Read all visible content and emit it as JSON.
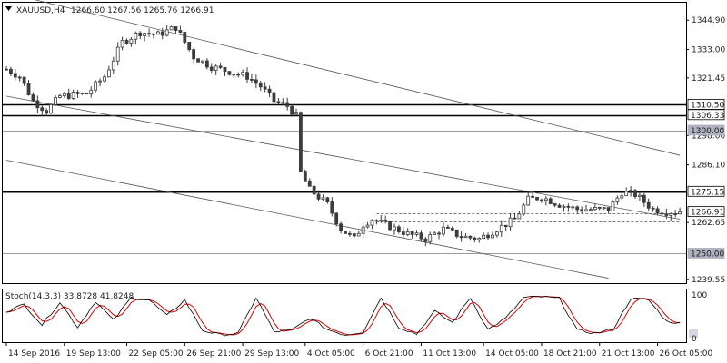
{
  "header": {
    "symbol": "XAUUSD,H4",
    "ohlc": "1266.60 1267.56 1265.76 1266.91"
  },
  "stoch_header": "Stoch(14,3,3) 33.8728 41.8248",
  "colors": {
    "candle": "#3c3c3c",
    "grid_line": "#000000",
    "trend_line": "#555555",
    "faded_line": "#9a9aa8",
    "dashed_line": "#555555",
    "stoch_main": "#000000",
    "stoch_signal": "#e00000",
    "axis_text": "#222222",
    "tag_dark_bg": "#ffffff",
    "tag_gray_bg": "#b0b0c0"
  },
  "chart_data": {
    "type": "candlestick",
    "symbol": "XAUUSD",
    "timeframe": "H4",
    "ylim": [
      1238.0,
      1352.0
    ],
    "y_ticks": [
      "1344.90",
      "1333.00",
      "1321.45",
      "1298.00",
      "1286.10",
      "1262.65",
      "1239.55"
    ],
    "x_ticks": [
      "14 Sep 2016",
      "19 Sep 13:00",
      "22 Sep 05:00",
      "26 Sep 21:00",
      "29 Sep 13:00",
      "4 Oct 05:00",
      "6 Oct 21:00",
      "11 Oct 13:00",
      "14 Oct 05:00",
      "18 Oct 21:00",
      "21 Oct 13:00",
      "26 Oct 05:00"
    ],
    "bar_count": 152,
    "horizontal_levels": [
      {
        "value": 1310.5,
        "label": "1310.50",
        "style": "solid-dark"
      },
      {
        "value": 1306.33,
        "label": "1306.33",
        "style": "solid-dark"
      },
      {
        "value": 1300.0,
        "label": "1300.00",
        "style": "faded"
      },
      {
        "value": 1275.15,
        "label": "1275.15",
        "style": "solid-dark"
      },
      {
        "value": 1266.91,
        "label": "1266.91",
        "style": "current"
      },
      {
        "value": 1250.0,
        "label": "1250.00",
        "style": "faded"
      }
    ],
    "dashed_levels": [
      {
        "value": 1266.5,
        "from_bar": 83,
        "to_bar": 151
      },
      {
        "value": 1263.0,
        "from_bar": 83,
        "to_bar": 151
      }
    ],
    "trend_lines": [
      {
        "from": [
          0,
          1356.0
        ],
        "to": [
          151,
          1290.0
        ]
      },
      {
        "from": [
          0,
          1314.0
        ],
        "to": [
          151,
          1264.0
        ]
      },
      {
        "from": [
          0,
          1288.0
        ],
        "to": [
          135,
          1240.0
        ]
      }
    ],
    "ohlc_anchors": [
      [
        0,
        1325
      ],
      [
        3,
        1322
      ],
      [
        6,
        1312
      ],
      [
        9,
        1308
      ],
      [
        12,
        1314
      ],
      [
        18,
        1315
      ],
      [
        22,
        1322
      ],
      [
        26,
        1336
      ],
      [
        30,
        1340
      ],
      [
        34,
        1339
      ],
      [
        38,
        1342
      ],
      [
        42,
        1330
      ],
      [
        46,
        1326
      ],
      [
        50,
        1324
      ],
      [
        54,
        1322
      ],
      [
        57,
        1318
      ],
      [
        60,
        1312
      ],
      [
        63,
        1310
      ],
      [
        65,
        1306
      ],
      [
        66,
        1283
      ],
      [
        68,
        1276
      ],
      [
        72,
        1270
      ],
      [
        75,
        1260
      ],
      [
        78,
        1256
      ],
      [
        80,
        1262
      ],
      [
        82,
        1264
      ],
      [
        86,
        1261
      ],
      [
        90,
        1258
      ],
      [
        94,
        1256
      ],
      [
        98,
        1260
      ],
      [
        102,
        1257
      ],
      [
        106,
        1256
      ],
      [
        110,
        1260
      ],
      [
        114,
        1264
      ],
      [
        117,
        1272
      ],
      [
        120,
        1273
      ],
      [
        124,
        1270
      ],
      [
        128,
        1268
      ],
      [
        132,
        1268
      ],
      [
        135,
        1268
      ],
      [
        138,
        1275
      ],
      [
        141,
        1274
      ],
      [
        145,
        1268
      ],
      [
        148,
        1267
      ],
      [
        151,
        1266.91
      ]
    ],
    "stoch": {
      "ylim": [
        0,
        100
      ],
      "levels_labels": [
        "100",
        "0"
      ],
      "main_anchors": [
        [
          0,
          60
        ],
        [
          4,
          75
        ],
        [
          8,
          30
        ],
        [
          12,
          80
        ],
        [
          16,
          25
        ],
        [
          20,
          82
        ],
        [
          24,
          40
        ],
        [
          28,
          90
        ],
        [
          32,
          85
        ],
        [
          36,
          50
        ],
        [
          40,
          85
        ],
        [
          44,
          18
        ],
        [
          48,
          8
        ],
        [
          52,
          12
        ],
        [
          56,
          90
        ],
        [
          60,
          15
        ],
        [
          64,
          18
        ],
        [
          68,
          45
        ],
        [
          72,
          20
        ],
        [
          76,
          8
        ],
        [
          80,
          15
        ],
        [
          84,
          90
        ],
        [
          88,
          25
        ],
        [
          92,
          10
        ],
        [
          96,
          60
        ],
        [
          100,
          35
        ],
        [
          104,
          90
        ],
        [
          108,
          20
        ],
        [
          112,
          45
        ],
        [
          116,
          90
        ],
        [
          120,
          92
        ],
        [
          124,
          88
        ],
        [
          128,
          18
        ],
        [
          132,
          12
        ],
        [
          136,
          20
        ],
        [
          140,
          88
        ],
        [
          144,
          85
        ],
        [
          148,
          38
        ],
        [
          151,
          34
        ]
      ],
      "signal_lag": 2
    }
  }
}
